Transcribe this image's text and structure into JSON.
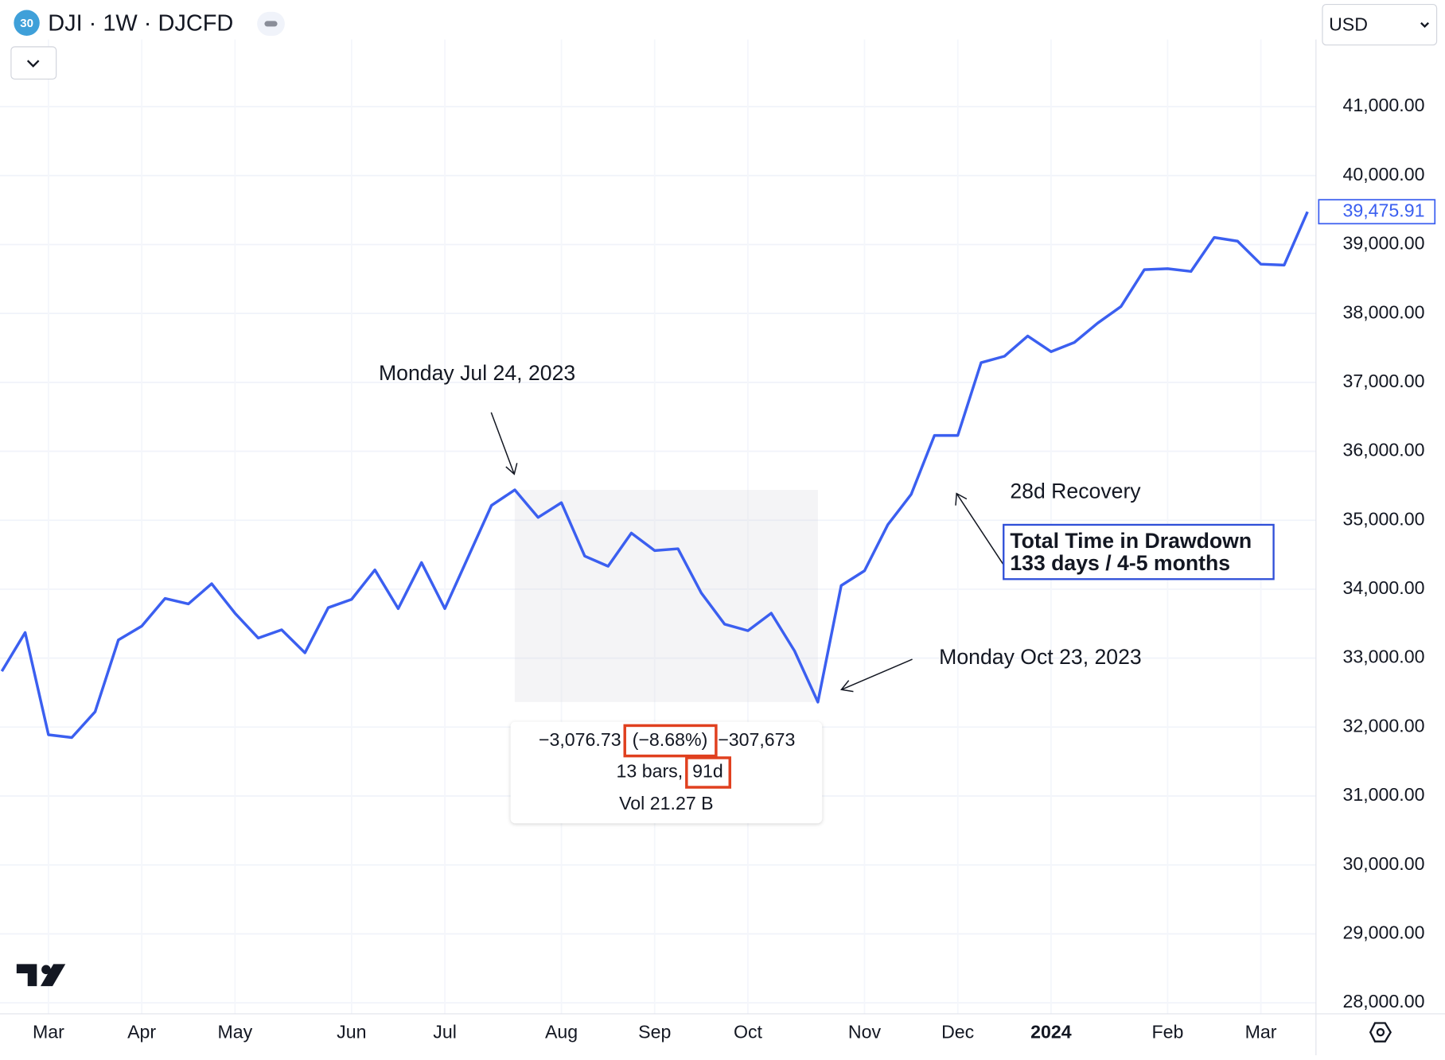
{
  "header": {
    "badge": "30",
    "symbol": "DJI · 1W · DJCFD",
    "currency": "USD"
  },
  "chart_data": {
    "type": "line",
    "color": "#3b5ff0",
    "categories": [
      null,
      null,
      "Mar",
      null,
      null,
      null,
      "Apr",
      null,
      null,
      null,
      "May",
      null,
      null,
      null,
      null,
      "Jun",
      null,
      null,
      null,
      "Jul",
      null,
      null,
      null,
      null,
      "Aug",
      null,
      null,
      null,
      "Sep",
      null,
      null,
      null,
      "Oct",
      null,
      null,
      null,
      null,
      "Nov",
      null,
      null,
      null,
      "Dec",
      null,
      null,
      null,
      "2024",
      null,
      null,
      null,
      null,
      "Feb",
      null,
      null,
      null,
      "Mar",
      null,
      null
    ],
    "values": [
      32810,
      33371,
      31888,
      31848,
      32222,
      33264,
      33465,
      33866,
      33786,
      34079,
      33652,
      33291,
      33411,
      33077,
      33732,
      33852,
      34280,
      33719,
      34387,
      33719,
      34467,
      35215,
      35440,
      35041,
      35255,
      34480,
      34333,
      34814,
      34560,
      34587,
      33946,
      33492,
      33398,
      33652,
      33104,
      32363,
      34053,
      34267,
      34935,
      35375,
      36230,
      36230,
      37286,
      37379,
      37673,
      37446,
      37580,
      37860,
      38101,
      38635,
      38649,
      38609,
      39103,
      39049,
      38715,
      38702,
      39475.91
    ],
    "value_labels": [
      null,
      null,
      null,
      null,
      null,
      null,
      null,
      null,
      null,
      null,
      null,
      null,
      null,
      null,
      null,
      null,
      null,
      null,
      null,
      null,
      null,
      null,
      null,
      null,
      null,
      null,
      null,
      null,
      null,
      null,
      null,
      null,
      null,
      null,
      null,
      null,
      null,
      null,
      null,
      null,
      null,
      null,
      null,
      null,
      null,
      null,
      null,
      null,
      null,
      null,
      null,
      null,
      null,
      null,
      null,
      null,
      "39,475.91"
    ],
    "ylim": [
      27840,
      41975
    ],
    "yticks": [
      {
        "value": 28000,
        "label": "28,000.00"
      },
      {
        "value": 29000,
        "label": "29,000.00"
      },
      {
        "value": 30000,
        "label": "30,000.00"
      },
      {
        "value": 31000,
        "label": "31,000.00"
      },
      {
        "value": 32000,
        "label": "32,000.00"
      },
      {
        "value": 33000,
        "label": "33,000.00"
      },
      {
        "value": 34000,
        "label": "34,000.00"
      },
      {
        "value": 35000,
        "label": "35,000.00"
      },
      {
        "value": 36000,
        "label": "36,000.00"
      },
      {
        "value": 37000,
        "label": "37,000.00"
      },
      {
        "value": 38000,
        "label": "38,000.00"
      },
      {
        "value": 39000,
        "label": "39,000.00"
      },
      {
        "value": 40000,
        "label": "40,000.00"
      },
      {
        "value": 41000,
        "label": "41,000.00"
      }
    ],
    "grid": true,
    "annotations": {
      "peak": "Monday Jul 24, 2023",
      "trough": "Monday Oct 23, 2023",
      "recovery": "28d Recovery",
      "total_title": "Total Time in Drawdown",
      "total_value": "133 days / 4-5 months"
    },
    "measure": {
      "change": "−3,076.73",
      "percent": "(−8.68%)",
      "ticks": "−307,673",
      "bars": "13 bars,",
      "days": "91d",
      "volume": "Vol 21.27 B"
    }
  }
}
